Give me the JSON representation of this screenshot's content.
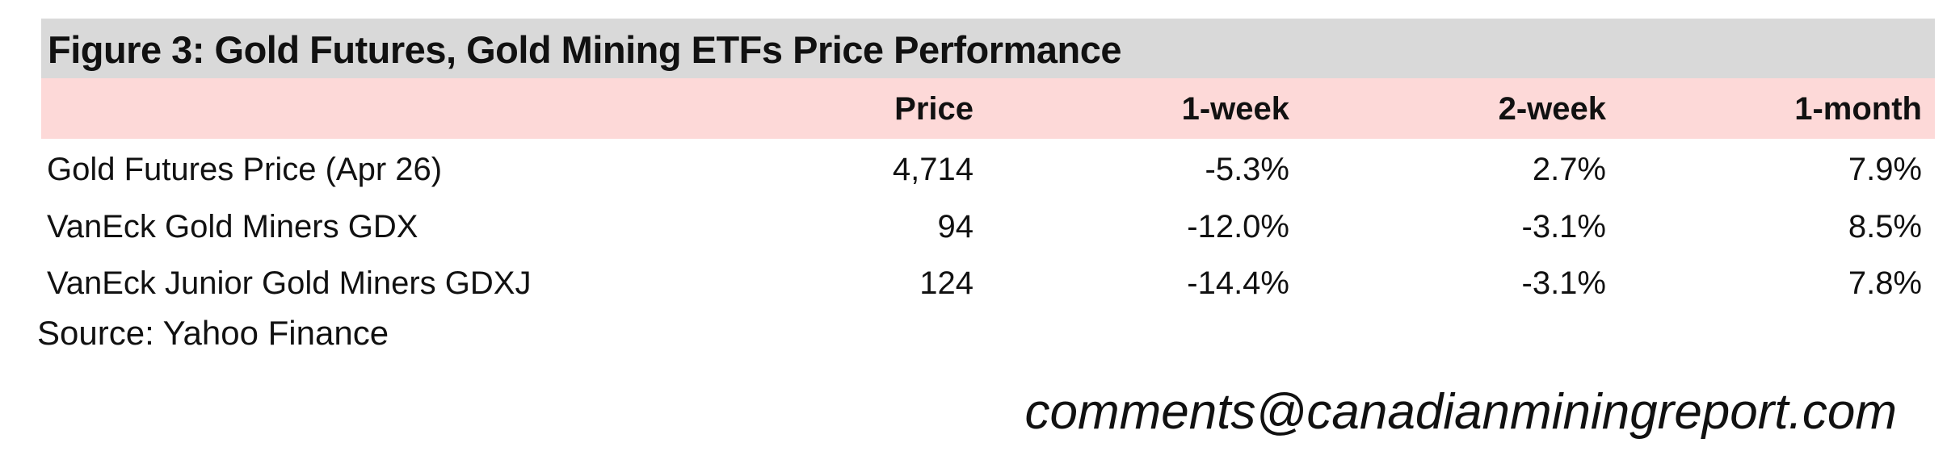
{
  "title": "Figure 3: Gold Futures, Gold Mining ETFs Price Performance",
  "table": {
    "header": [
      "",
      "Price",
      "1-week",
      "2-week",
      "1-month"
    ],
    "rows": [
      [
        "Gold Futures Price (Apr 26)",
        "4,714",
        "-5.3%",
        "2.7%",
        "7.9%"
      ],
      [
        "VanEck Gold Miners GDX",
        "94",
        "-12.0%",
        "-3.1%",
        "8.5%"
      ],
      [
        "VanEck Junior Gold Miners GDXJ",
        "124",
        "-14.4%",
        "-3.1%",
        "7.8%"
      ]
    ]
  },
  "source": "Source: Yahoo Finance",
  "contact": "comments@canadianminingreport.com"
}
